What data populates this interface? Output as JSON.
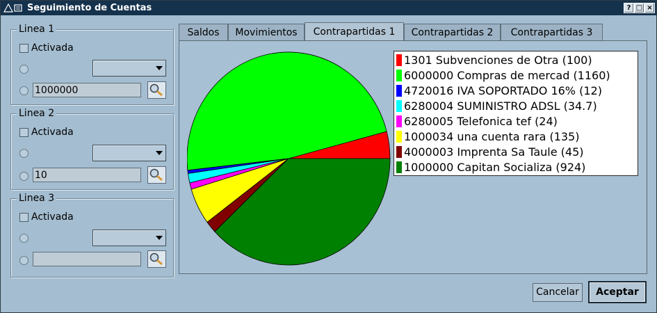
{
  "window": {
    "title": "Seguimiento de Cuentas",
    "app_icon": "app-logo-icon"
  },
  "titlebar_buttons": {
    "help": "?",
    "maximize": "□",
    "close": "×"
  },
  "lines": [
    {
      "title": "Linea 1",
      "checkbox_label": "Activada",
      "combo_value": "",
      "field_value": "1000000"
    },
    {
      "title": "Linea 2",
      "checkbox_label": "Activada",
      "combo_value": "",
      "field_value": "10"
    },
    {
      "title": "Linea 3",
      "checkbox_label": "Activada",
      "combo_value": "",
      "field_value": ""
    }
  ],
  "tabs": [
    {
      "label": "Saldos",
      "active": false
    },
    {
      "label": "Movimientos",
      "active": false
    },
    {
      "label": "Contrapartidas 1",
      "active": true
    },
    {
      "label": "Contrapartidas 2",
      "active": false
    },
    {
      "label": "Contrapartidas 3",
      "active": false
    }
  ],
  "chart_data": {
    "type": "pie",
    "slices": [
      {
        "label": "1301 Subvenciones de Otra (100)",
        "value": 100,
        "color": "#ff0000"
      },
      {
        "label": "6000000 Compras de mercad (1160)",
        "value": 1160,
        "color": "#00ff00"
      },
      {
        "label": "4720016 IVA SOPORTADO 16% (12)",
        "value": 12,
        "color": "#0000ff"
      },
      {
        "label": "6280004 SUMINISTRO ADSL (34.7)",
        "value": 34.7,
        "color": "#00ffff"
      },
      {
        "label": "6280005 Telefonica tef (24)",
        "value": 24,
        "color": "#ff00ff"
      },
      {
        "label": "1000034 una cuenta rara (135)",
        "value": 135,
        "color": "#ffff00"
      },
      {
        "label": "4000003 Imprenta Sa Taule (45)",
        "value": 45,
        "color": "#800000"
      },
      {
        "label": "1000000 Capitan Socializa (924)",
        "value": 924,
        "color": "#008000"
      }
    ],
    "legend_position": "top-right"
  },
  "buttons": {
    "cancel": "Cancelar",
    "accept": "Aceptar"
  }
}
